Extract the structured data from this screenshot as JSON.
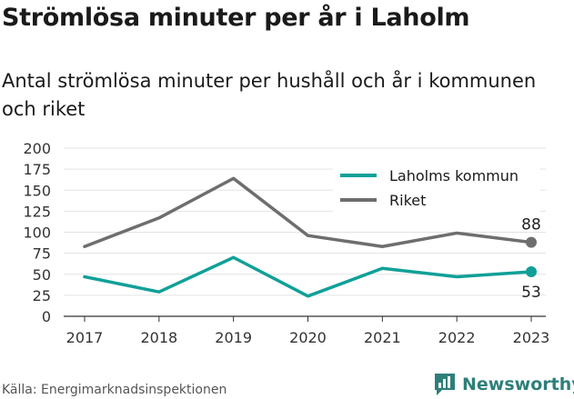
{
  "title": "Strömlösa minuter per år i Laholm",
  "subtitle": "Antal strömlösa minuter per hushåll och år i kommunen och riket",
  "source": "Källa: Energimarknadsinspektionen",
  "brand": {
    "name": "Newsworthy",
    "icon": "newsworthy-logo-icon",
    "color": "#2e7f79"
  },
  "chart_data": {
    "type": "line",
    "title": "Strömlösa minuter per år i Laholm",
    "subtitle": "Antal strömlösa minuter per hushåll och år i kommunen och riket",
    "x": [
      "2017",
      "2018",
      "2019",
      "2020",
      "2021",
      "2022",
      "2023"
    ],
    "series": [
      {
        "name": "Laholms kommun",
        "color": "#10a098",
        "values": [
          47,
          29,
          70,
          24,
          57,
          47,
          53
        ],
        "end_label": "53"
      },
      {
        "name": "Riket",
        "color": "#6e6e6e",
        "values": [
          83,
          117,
          164,
          96,
          83,
          99,
          88
        ],
        "end_label": "88"
      }
    ],
    "ylim": [
      0,
      200
    ],
    "yticks": [
      "0",
      "25",
      "50",
      "75",
      "100",
      "125",
      "150",
      "175",
      "200"
    ],
    "grid": true,
    "legend": "top-right"
  }
}
